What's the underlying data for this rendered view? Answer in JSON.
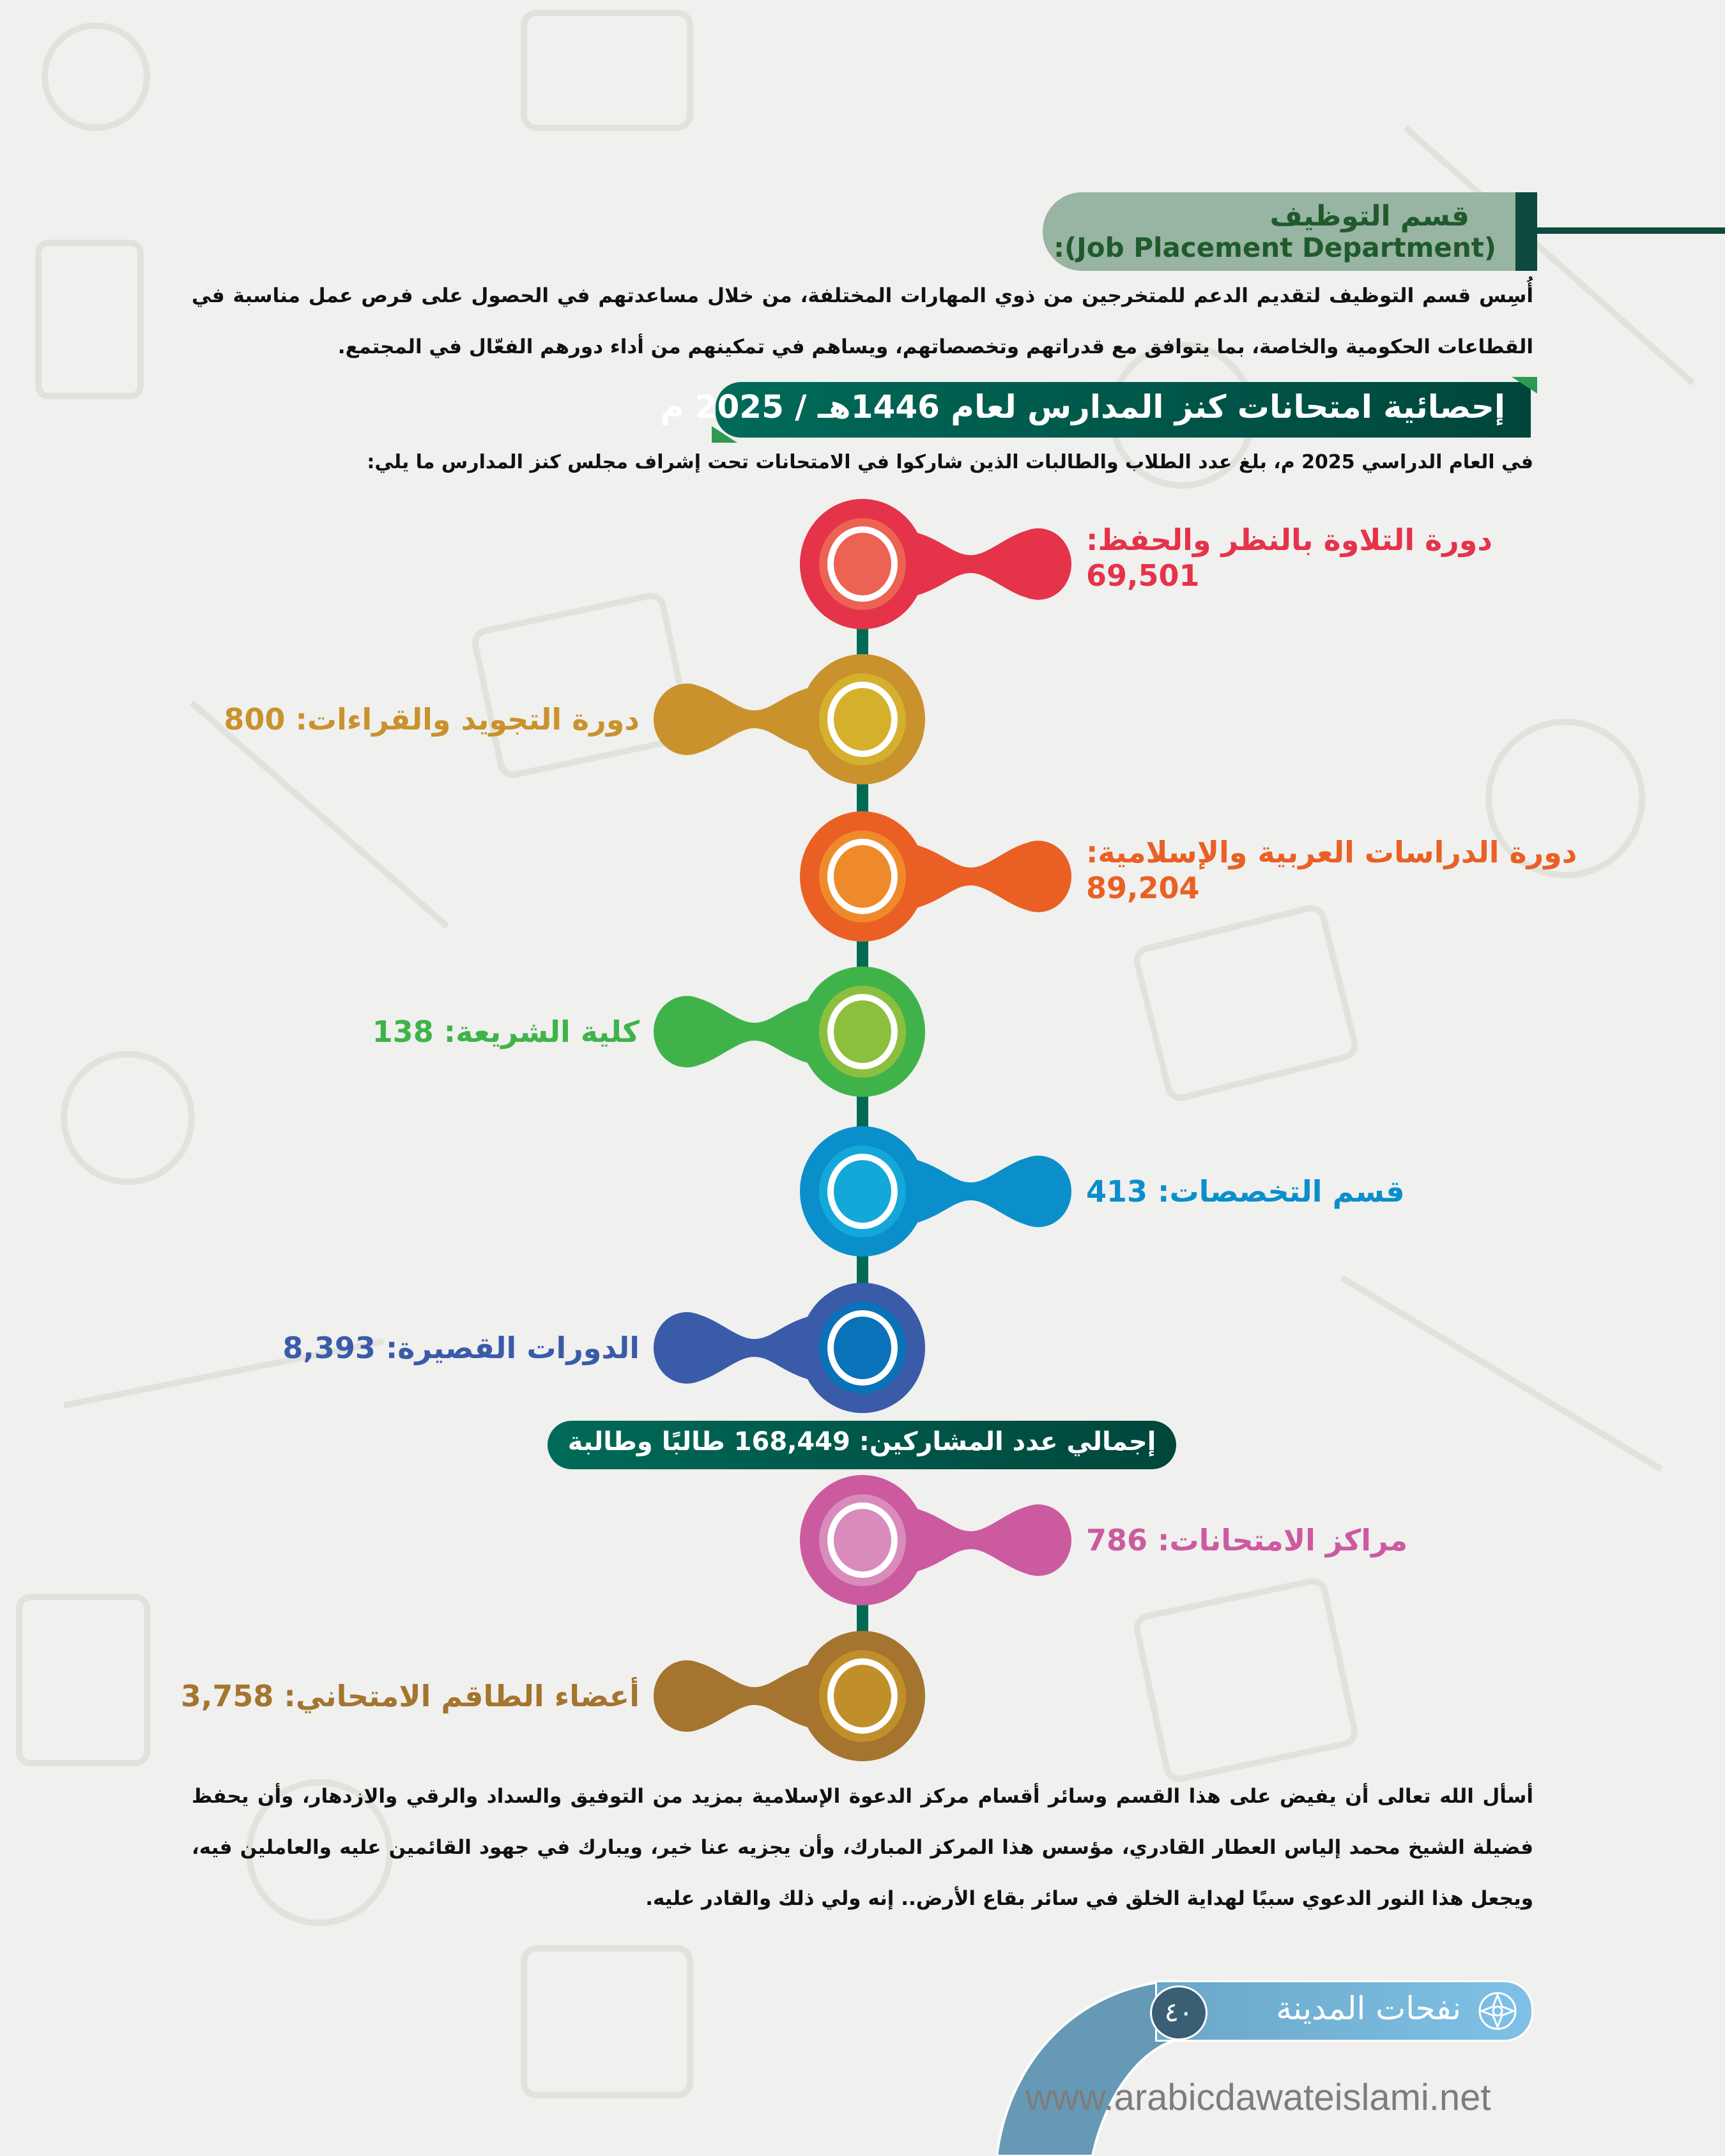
{
  "colors": {
    "background": "#f0f0ef",
    "dark_green": "#0d4a3e",
    "stem": "#006a55",
    "footer_blue": "#6aa7c8"
  },
  "section": {
    "title": "قسم التوظيف",
    "subtitle": ":(Job Placement Department)",
    "paragraph": "أُسِس قسم التوظيف لتقديم الدعم للمتخرجين من ذوي المهارات المختلفة، من خلال مساعدتهم في الحصول على فرص عمل مناسبة في القطاعات الحكومية والخاصة، بما يتوافق مع قدراتهم وتخصصاتهم، ويساهم في تمكينهم من أداء دورهم الفعّال في المجتمع."
  },
  "stats": {
    "banner": "إحصائية امتحانات كنز المدارس لعام 1446هـ / 2025 م",
    "intro": "في العام الدراسي 2025 م، بلغ عدد الطلاب والطالبات الذين شاركوا في الامتحانات تحت إشراف مجلس كنز المدارس ما يلي:",
    "items": [
      {
        "label": "دورة التلاوة بالنظر والحفظ:",
        "value": "69,501",
        "side": "right",
        "color": "#e5334a",
        "inner": "#ec6253"
      },
      {
        "label": "دورة التجويد والقراءات:",
        "value": "800",
        "side": "left",
        "color": "#c9922c",
        "inner": "#d4b02c"
      },
      {
        "label": "دورة الدراسات العربية والإسلامية:",
        "value": "89,204",
        "side": "right",
        "color": "#ea6024",
        "inner": "#ef8a2a"
      },
      {
        "label": "كلية الشريعة:",
        "value": "138",
        "side": "left",
        "color": "#3fb34a",
        "inner": "#8dbf3f"
      },
      {
        "label": "قسم التخصصات:",
        "value": "413",
        "side": "right",
        "color": "#0b8fcb",
        "inner": "#13a8d8"
      },
      {
        "label": "الدورات القصيرة:",
        "value": "8,393",
        "side": "left",
        "color": "#3a5ba8",
        "inner": "#0a72b8"
      }
    ],
    "total": "إجمالي عدد المشاركين: 168,449 طالبًا وطالبة",
    "items2": [
      {
        "label": "مراكز الامتحانات:",
        "value": "786",
        "side": "right",
        "color": "#cc5a9f",
        "inner": "#d98bbb"
      },
      {
        "label": "أعضاء الطاقم الامتحاني:",
        "value": "3,758",
        "side": "left",
        "color": "#a5742f",
        "inner": "#c18f2a"
      }
    ]
  },
  "closing": "أسأل الله تعالى أن يفيض على هذا القسم وسائر أقسام مركز الدعوة الإسلامية بمزيد من التوفيق والسداد والرقي والازدهار، وأن يحفظ فضيلة الشيخ محمد إلياس العطار القادري، مؤسس هذا المركز المبارك، وأن يجزيه عنا خير، ويبارك في جهود القائمين عليه والعاملين فيه، ويجعل هذا النور الدعوي سببًا لهداية الخلق في سائر بقاع الأرض.. إنه ولي ذلك والقادر عليه.",
  "footer": {
    "magazine": "نفحات المدينة",
    "page": "٤٠",
    "url": "www.arabicdawateislami.net",
    "icon": "islamic-star-ornament-icon"
  }
}
